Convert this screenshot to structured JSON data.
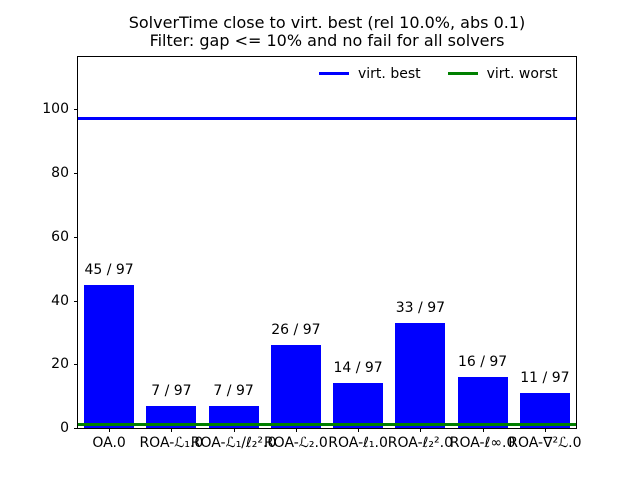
{
  "chart_data": {
    "type": "bar",
    "title": "SolverTime close to virt. best (rel 10.0%, abs 0.1)",
    "subtitle": "Filter: gap <= 10% and no fail for all solvers",
    "categories": [
      "OA.0",
      "ROA-ℒ₁.0",
      "ROA-ℒ₁/ℓ₂².0",
      "ROA-ℒ₂.0",
      "ROA-ℓ₁.0",
      "ROA-ℓ₂².0",
      "ROA-ℓ∞.0",
      "ROA-∇²ℒ.0"
    ],
    "values": [
      45,
      7,
      7,
      26,
      14,
      33,
      16,
      11
    ],
    "bar_labels": [
      "45 / 97",
      "7 / 97",
      "7 / 97",
      "26 / 97",
      "14 / 97",
      "33 / 97",
      "16 / 97",
      "11 / 97"
    ],
    "total_instances": 97,
    "bar_color": "#0000ff",
    "hlines": [
      {
        "label": "virt. best",
        "y": 97,
        "color": "#0000ff"
      },
      {
        "label": "virt. worst",
        "y": 1,
        "color": "#008000"
      }
    ],
    "yticks": [
      0,
      20,
      40,
      60,
      80,
      100
    ],
    "ylim": [
      0,
      116.4
    ],
    "xlabel": "",
    "ylabel": "",
    "grid": false,
    "legend_position": "upper right inside plot, 2 columns, no frame"
  }
}
